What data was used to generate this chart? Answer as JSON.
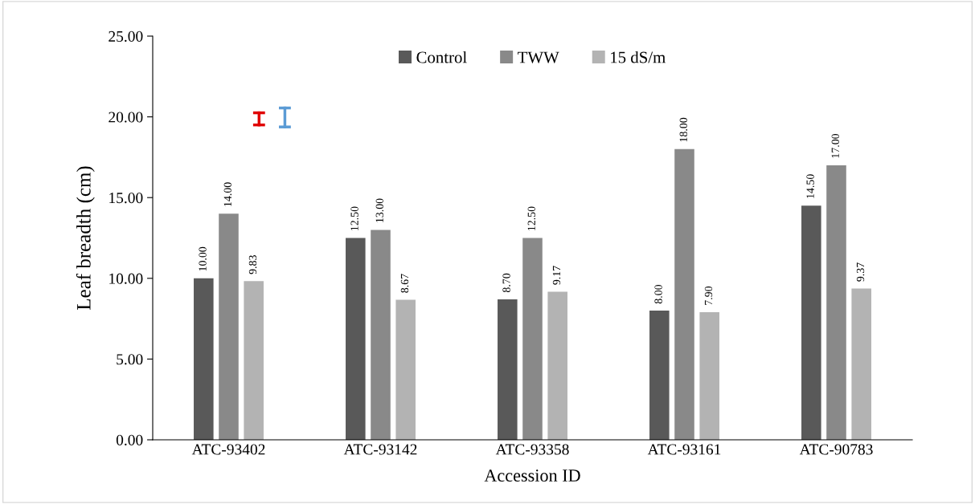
{
  "chart_data": {
    "type": "bar",
    "xlabel": "Accession ID",
    "ylabel": "Leaf breadth (cm)",
    "categories": [
      "ATC-93402",
      "ATC-93142",
      "ATC-93358",
      "ATC-93161",
      "ATC-90783"
    ],
    "series": [
      {
        "name": "Control",
        "color": "#595959",
        "values": [
          10.0,
          12.5,
          8.7,
          8.0,
          14.5
        ],
        "value_labels": [
          "10.00",
          "12.50",
          "8.70",
          "8.00",
          "14.50"
        ]
      },
      {
        "name": "TWW",
        "color": "#898989",
        "values": [
          14.0,
          13.0,
          12.5,
          18.0,
          17.0
        ],
        "value_labels": [
          "14.00",
          "13.00",
          "12.50",
          "18.00",
          "17.00"
        ]
      },
      {
        "name": "15 dS/m",
        "color": "#b3b3b3",
        "values": [
          9.83,
          8.67,
          9.17,
          7.9,
          9.37
        ],
        "value_labels": [
          "9.83",
          "8.67",
          "9.17",
          "7.90",
          "9.37"
        ]
      }
    ],
    "ylim": [
      0,
      25
    ],
    "yticks": [
      {
        "value": 0,
        "label": "0.00"
      },
      {
        "value": 5,
        "label": "5.00"
      },
      {
        "value": 10,
        "label": "10.00"
      },
      {
        "value": 15,
        "label": "15.00"
      },
      {
        "value": 20,
        "label": "20.00"
      },
      {
        "value": 25,
        "label": "25.00"
      }
    ],
    "grid": false,
    "legend": "top"
  }
}
